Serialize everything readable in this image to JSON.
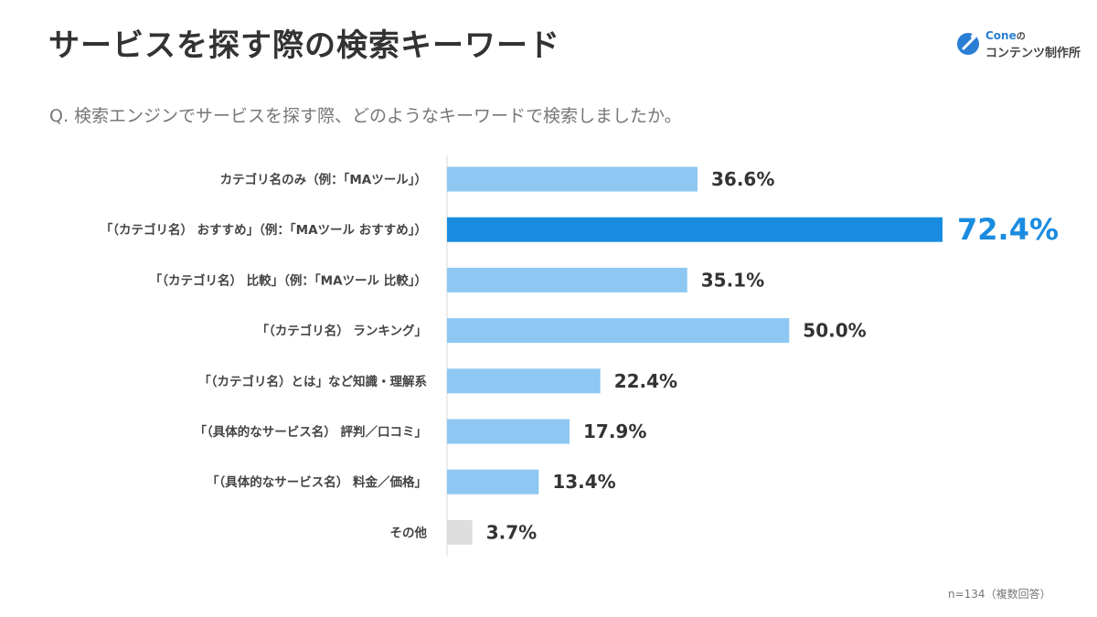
{
  "header": {
    "title": "サービスを探す際の検索キーワード",
    "question": "Q. 検索エンジンでサービスを探す際、どのようなキーワードで検索しましたか。"
  },
  "logo": {
    "brand": "Cone",
    "particle": "の",
    "subtitle": "コンテンツ制作所",
    "mark_icon": "cone-logo-icon"
  },
  "colors": {
    "bar": "#8ec7f2",
    "highlight": "#1a8ce0",
    "other": "#dddddd",
    "axis": "#d8d8d8"
  },
  "chart_data": {
    "type": "bar",
    "orientation": "horizontal",
    "categories": [
      "カテゴリ名のみ（例：「MAツール」）",
      "「（カテゴリ名） おすすめ」（例：「MAツール おすすめ」）",
      "「（カテゴリ名） 比較」（例：「MAツール 比較」）",
      "「（カテゴリ名） ランキング」",
      "「（カテゴリ名）とは」など知識・理解系",
      "「（具体的なサービス名） 評判／口コミ」",
      "「（具体的なサービス名） 料金／価格」",
      "その他"
    ],
    "values": [
      36.6,
      72.4,
      35.1,
      50.0,
      22.4,
      17.9,
      13.4,
      3.7
    ],
    "value_labels": [
      "36.6%",
      "72.4%",
      "35.1%",
      "50.0%",
      "22.4%",
      "17.9%",
      "13.4%",
      "3.7%"
    ],
    "highlight_index": 1,
    "other_index": 7,
    "xlim": [
      0,
      76
    ],
    "unit": "%",
    "grid": false
  },
  "footnote": "n=134（複数回答）"
}
